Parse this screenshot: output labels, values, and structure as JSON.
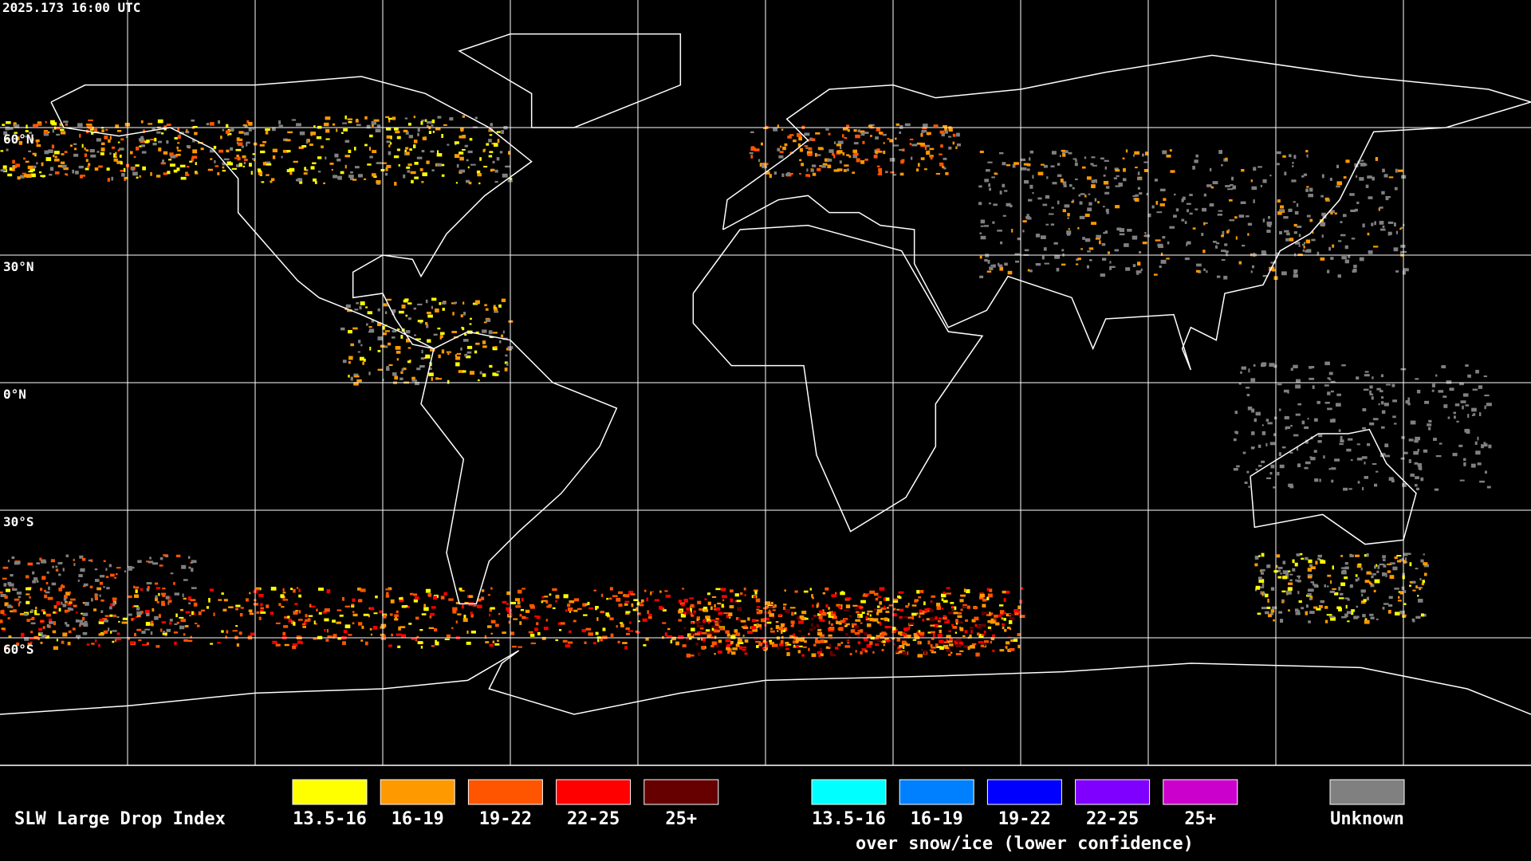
{
  "header": {
    "timestamp": "2025.173 16:00 UTC"
  },
  "map": {
    "latitude_labels": [
      "60°N",
      "30°N",
      "0°N",
      "30°S",
      "60°S"
    ]
  },
  "legend": {
    "title": "SLW Large Drop Index",
    "groups": [
      {
        "items": [
          {
            "label": "13.5-16",
            "color": "#ffff00"
          },
          {
            "label": "16-19",
            "color": "#ff9900"
          },
          {
            "label": "19-22",
            "color": "#ff5500"
          },
          {
            "label": "22-25",
            "color": "#ff0000"
          },
          {
            "label": "25+",
            "color": "#660000"
          }
        ]
      },
      {
        "items": [
          {
            "label": "13.5-16",
            "color": "#00ffff"
          },
          {
            "label": "16-19",
            "color": "#0080ff"
          },
          {
            "label": "19-22",
            "color": "#0000ff"
          },
          {
            "label": "22-25",
            "color": "#8000ff"
          },
          {
            "label": "25+",
            "color": "#cc00cc"
          }
        ],
        "caption": "over snow/ice (lower confidence)"
      },
      {
        "items": [
          {
            "label": "Unknown",
            "color": "#808080"
          }
        ]
      }
    ]
  }
}
